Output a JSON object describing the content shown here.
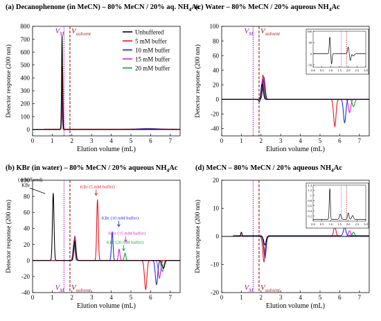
{
  "colors": {
    "unbuffered": "#000000",
    "b5": "#e8141d",
    "b10": "#1a2ee0",
    "b15": "#e01fd6",
    "b20": "#13a52c",
    "vm": "#a01ad0",
    "vsolvent": "#a01818"
  },
  "chart_data": [
    {
      "type": "line",
      "panel": "(a)",
      "title_prefix": "(a) ",
      "title": "Decanophenone (in MeCN) – 80% MeCN / 20% aq. NH",
      "title_sub": "4",
      "title_suffix": "Ac",
      "xlabel": "Elution volume (mL)",
      "ylabel": "Detector response (200 nm)",
      "xlim": [
        0,
        7.5
      ],
      "ylim": [
        -50,
        800
      ],
      "xticks": [
        0,
        1,
        2,
        3,
        4,
        5,
        6,
        7
      ],
      "yticks": [
        0,
        100,
        200,
        300,
        400,
        500,
        600,
        700,
        800
      ],
      "vm": 1.6,
      "vsolvent": 1.9,
      "vm_label": "V",
      "vm_sub": "M",
      "vsolvent_label": "V",
      "vsolvent_sub": "solvent",
      "legend": {
        "placement": "top-right",
        "entries": [
          "Unbuffered",
          "5 mM buffer",
          "10 mM buffer",
          "15 mM buffer",
          "20 mM buffer"
        ]
      },
      "series": [
        {
          "color_key": "unbuffered",
          "baseline": 0,
          "peaks": [
            [
              1.5,
              730,
              0.025
            ]
          ]
        },
        {
          "color_key": "b5",
          "baseline": 2,
          "peaks": [
            [
              1.52,
              500,
              0.025
            ]
          ]
        },
        {
          "color_key": "b10",
          "baseline": 1,
          "peaks": [
            [
              1.51,
              310,
              0.025
            ],
            [
              5.9,
              6,
              0.5
            ]
          ]
        },
        {
          "color_key": "b15",
          "baseline": 0,
          "peaks": [
            [
              1.5,
              210,
              0.025
            ]
          ]
        },
        {
          "color_key": "b20",
          "baseline": -1,
          "peaks": [
            [
              1.49,
              180,
              0.025
            ],
            [
              6.3,
              4,
              0.4
            ]
          ]
        }
      ],
      "inset": null
    },
    {
      "type": "line",
      "panel": "(c)",
      "title_prefix": "(c) ",
      "title": "Water – 80% MeCN / 20% aqueous NH",
      "title_sub": "4",
      "title_suffix": "Ac",
      "xlabel": "Elution volume (mL)",
      "ylabel": "Detector response (200 nm)",
      "xlim": [
        0,
        7.5
      ],
      "ylim": [
        -50,
        100
      ],
      "xticks": [
        0,
        1,
        2,
        3,
        4,
        5,
        6,
        7
      ],
      "yticks": [
        -40,
        -20,
        0,
        20,
        40,
        60,
        80,
        100
      ],
      "vm": 1.6,
      "vsolvent": 1.9,
      "vm_label": "V",
      "vm_sub": "M",
      "vsolvent_label": "V",
      "vsolvent_sub": "solvent",
      "legend": null,
      "series": [
        {
          "color_key": "unbuffered",
          "baseline": 0,
          "peaks": [
            [
              2.05,
              22,
              0.06
            ],
            [
              1.95,
              -6,
              0.05
            ]
          ]
        },
        {
          "color_key": "b5",
          "baseline": 0,
          "peaks": [
            [
              2.1,
              33,
              0.06
            ],
            [
              5.75,
              -37,
              0.06
            ]
          ]
        },
        {
          "color_key": "b10",
          "baseline": 0,
          "peaks": [
            [
              2.15,
              30,
              0.06
            ],
            [
              6.25,
              -32,
              0.06
            ]
          ]
        },
        {
          "color_key": "b15",
          "baseline": 0,
          "peaks": [
            [
              2.12,
              28,
              0.06
            ],
            [
              6.5,
              -18,
              0.06
            ]
          ]
        },
        {
          "color_key": "b20",
          "baseline": 0,
          "peaks": [
            [
              2.08,
              25,
              0.06
            ],
            [
              6.7,
              -10,
              0.06
            ]
          ]
        }
      ],
      "inset": {
        "xlim": [
          0,
          3
        ],
        "ylim": [
          -60,
          100
        ],
        "xticks": [
          0,
          0.5,
          1,
          1.5,
          2,
          2.5,
          3
        ],
        "xtick_labels": [
          "0.0",
          "0.5",
          "1.0",
          "1.5",
          "2.0",
          "2.5",
          "3.0"
        ],
        "yticks": [
          -50,
          0,
          50,
          100
        ],
        "vm": 1.6,
        "vsolvent": 1.9,
        "peaks": [
          [
            0.95,
            75,
            0.03
          ],
          [
            1.05,
            -45,
            0.03
          ],
          [
            2.0,
            30,
            0.04
          ],
          [
            2.12,
            -30,
            0.04
          ],
          [
            2.3,
            -10,
            0.05
          ]
        ]
      }
    },
    {
      "type": "line",
      "panel": "(b)",
      "title_prefix": "(b) ",
      "title": "KBr (in water) – 80% MeCN / 20% aqueous NH",
      "title_sub": "4",
      "title_suffix": "Ac",
      "xlabel": "Elution volume (mL)",
      "ylabel": "Detector response (200 nm)",
      "xlim": [
        0,
        7.5
      ],
      "ylim": [
        -40,
        100
      ],
      "xticks": [
        0,
        1,
        2,
        3,
        4,
        5,
        6,
        7
      ],
      "yticks": [
        -40,
        -20,
        0,
        20,
        40,
        60,
        80,
        100
      ],
      "vm": 1.6,
      "vsolvent": 1.9,
      "vm_label": "V",
      "vm_sub": "M",
      "vsolvent_label": "V",
      "vsolvent_sub": "solvent",
      "legend": null,
      "annotations": [
        {
          "text": "KBr (unbuffered)",
          "x": 0.85,
          "y": 92,
          "color_key": "unbuffered"
        },
        {
          "text": "KBr (5 mM buffer)",
          "x": 3.3,
          "y": 90,
          "color_key": "b5"
        },
        {
          "text": "KBr (10 mM buffer)",
          "x": 4.45,
          "y": 51,
          "color_key": "b10"
        },
        {
          "text": "KBr (15 mM buffer)",
          "x": 4.8,
          "y": 32,
          "color_key": "b15"
        },
        {
          "text": "KBr (20 mM buffer)",
          "x": 4.7,
          "y": 21,
          "color_key": "b20"
        }
      ],
      "series": [
        {
          "color_key": "unbuffered",
          "baseline": 0,
          "peaks": [
            [
              1.05,
              84,
              0.04
            ],
            [
              2.15,
              24,
              0.05
            ],
            [
              6.65,
              -10,
              0.06
            ]
          ]
        },
        {
          "color_key": "b5",
          "baseline": 0,
          "peaks": [
            [
              3.3,
              76,
              0.04
            ],
            [
              2.15,
              28,
              0.05
            ],
            [
              5.75,
              -36,
              0.06
            ]
          ]
        },
        {
          "color_key": "b10",
          "baseline": 0,
          "peaks": [
            [
              4.05,
              36,
              0.04
            ],
            [
              2.15,
              30,
              0.05
            ],
            [
              6.3,
              -30,
              0.06
            ]
          ]
        },
        {
          "color_key": "b15",
          "baseline": 0,
          "peaks": [
            [
              4.4,
              14,
              0.04
            ],
            [
              2.12,
              26,
              0.05
            ],
            [
              6.45,
              -22,
              0.06
            ]
          ]
        },
        {
          "color_key": "b20",
          "baseline": 0,
          "peaks": [
            [
              4.7,
              9,
              0.04
            ],
            [
              2.1,
              22,
              0.05
            ],
            [
              6.6,
              -14,
              0.06
            ]
          ]
        }
      ],
      "inset": null
    },
    {
      "type": "line",
      "panel": "(d)",
      "title_prefix": "(d) ",
      "title": "MeCN – 80% MeCN / 20% aqueous NH",
      "title_sub": "4",
      "title_suffix": "Ac",
      "xlabel": "Elution volume (mL)",
      "ylabel": "Detector response (200 nm)",
      "xlim": [
        0,
        7.5
      ],
      "ylim": [
        -20,
        20
      ],
      "xticks": [
        0,
        1,
        2,
        3,
        4,
        5,
        6,
        7
      ],
      "yticks": [
        -20,
        -10,
        0,
        10,
        20
      ],
      "vm": 1.6,
      "vsolvent": 1.9,
      "vm_label": "V",
      "vm_sub": "M",
      "vsolvent_label": "V",
      "vsolvent_sub": "solvent",
      "legend": null,
      "series": [
        {
          "color_key": "unbuffered",
          "baseline": 0,
          "peaks": [
            [
              1.0,
              1.5,
              0.03
            ],
            [
              2.2,
              -3,
              0.06
            ]
          ]
        },
        {
          "color_key": "b5",
          "baseline": 0,
          "peaks": [
            [
              2.15,
              -9,
              0.06
            ],
            [
              5.75,
              3.5,
              0.06
            ]
          ]
        },
        {
          "color_key": "b10",
          "baseline": 0.3,
          "peaks": [
            [
              2.2,
              -8,
              0.06
            ],
            [
              6.25,
              3,
              0.06
            ]
          ]
        },
        {
          "color_key": "b15",
          "baseline": 0,
          "peaks": [
            [
              2.2,
              -6,
              0.06
            ],
            [
              6.5,
              2,
              0.06
            ]
          ]
        },
        {
          "color_key": "b20",
          "baseline": 0,
          "peaks": [
            [
              2.2,
              -5,
              0.06
            ],
            [
              6.7,
              1.5,
              0.06
            ]
          ]
        }
      ],
      "inset": {
        "xlim": [
          0,
          3
        ],
        "ylim": [
          0,
          1.4
        ],
        "xticks": [
          0,
          0.5,
          1,
          1.5,
          2,
          2.5,
          3
        ],
        "xtick_labels": [
          "0.0",
          "0.5",
          "1.0",
          "1.5",
          "2.0",
          "2.5",
          "3.0"
        ],
        "yticks": [
          0.2,
          0.4,
          0.6,
          0.8,
          1.0,
          1.2,
          1.4
        ],
        "vm": 1.6,
        "vsolvent": 1.9,
        "peaks": [
          [
            0.95,
            1.2,
            0.03
          ],
          [
            1.55,
            0.2,
            0.05
          ],
          [
            2.0,
            0.25,
            0.04
          ],
          [
            2.25,
            0.15,
            0.05
          ]
        ]
      }
    }
  ]
}
